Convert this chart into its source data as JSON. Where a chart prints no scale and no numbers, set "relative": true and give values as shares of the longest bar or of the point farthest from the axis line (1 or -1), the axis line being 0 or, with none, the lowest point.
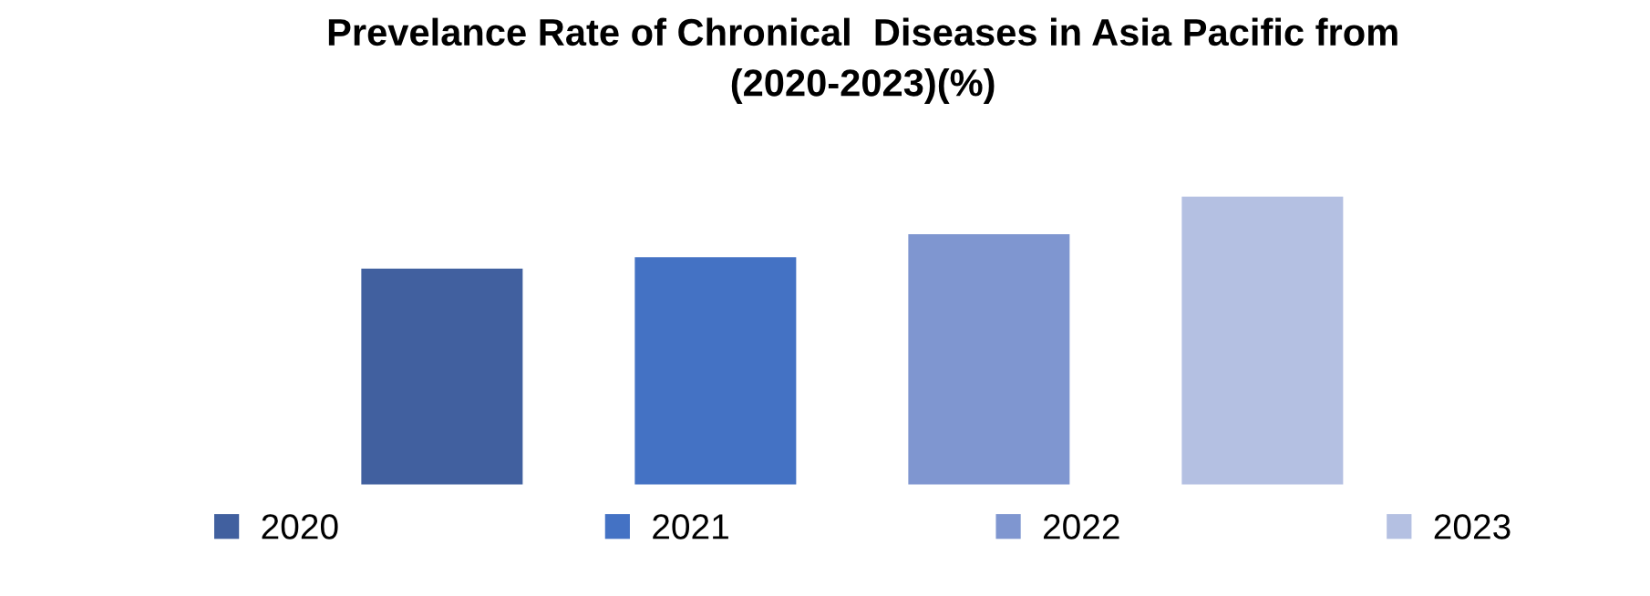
{
  "chart_data": {
    "type": "bar",
    "title": "Prevelance Rate of Chronical  Diseases in Asia Pacific from\n(2020-2023)(%)",
    "categories": [
      null,
      null,
      null,
      null
    ],
    "relative": true,
    "stacked": true,
    "legend": "bottom",
    "grid": false,
    "series": [
      {
        "name": "2020",
        "color": "#41609f",
        "values": [
          0.75,
          null,
          null,
          null
        ]
      },
      {
        "name": "2021",
        "color": "#4472c4",
        "values": [
          null,
          0.79,
          null,
          null
        ]
      },
      {
        "name": "2022",
        "color": "#7f96d0",
        "values": [
          null,
          null,
          0.87,
          null
        ]
      },
      {
        "name": "2023",
        "color": "#b4c0e2",
        "values": [
          null,
          null,
          null,
          1.0
        ]
      }
    ]
  }
}
